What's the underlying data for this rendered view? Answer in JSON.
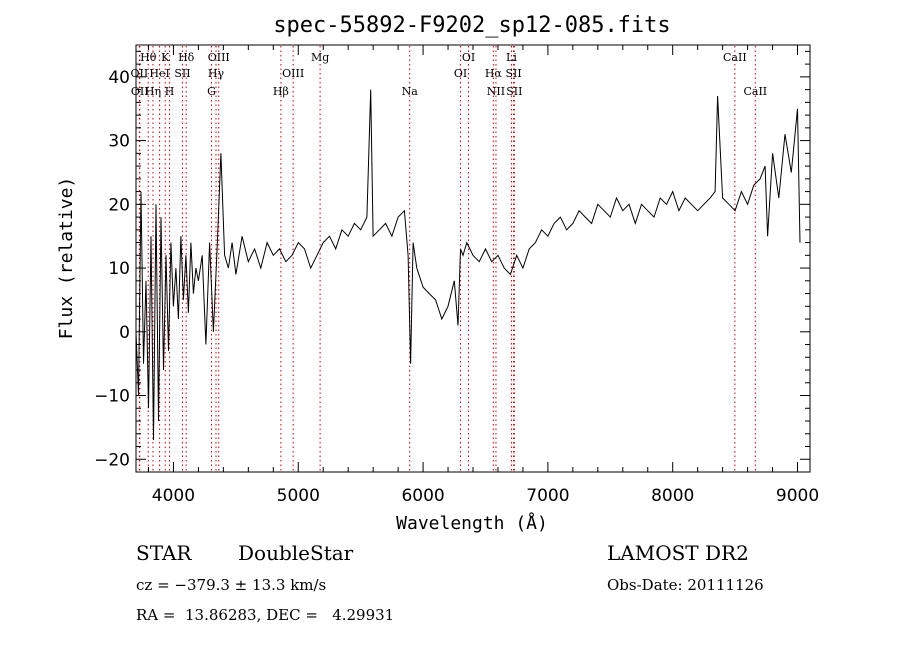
{
  "chart_data": {
    "type": "line",
    "title": "spec-55892-F9202_sp12-085.fits",
    "xlabel": "Wavelength (Å)",
    "ylabel": "Flux (relative)",
    "xlim": [
      3700,
      9100
    ],
    "ylim": [
      -22,
      45
    ],
    "x_ticks": [
      4000,
      5000,
      6000,
      7000,
      8000,
      9000
    ],
    "y_ticks": [
      -20,
      -10,
      0,
      10,
      20,
      30,
      40
    ],
    "grid": false,
    "line_color": "#000000",
    "marker_color": "#cc0000",
    "series": [
      {
        "x": [
          3700,
          3720,
          3740,
          3760,
          3780,
          3800,
          3820,
          3840,
          3860,
          3880,
          3900,
          3920,
          3940,
          3960,
          3980,
          4000,
          4020,
          4040,
          4060,
          4080,
          4100,
          4120,
          4140,
          4160,
          4180,
          4200,
          4230,
          4260,
          4290,
          4320,
          4350,
          4380,
          4410,
          4440,
          4470,
          4500,
          4550,
          4600,
          4650,
          4700,
          4750,
          4800,
          4850,
          4900,
          4950,
          5000,
          5050,
          5100,
          5150,
          5200,
          5250,
          5300,
          5350,
          5400,
          5450,
          5500,
          5550,
          5580,
          5600,
          5650,
          5700,
          5750,
          5800,
          5850,
          5880,
          5900,
          5920,
          5950,
          6000,
          6050,
          6100,
          6150,
          6200,
          6250,
          6280,
          6300,
          6320,
          6350,
          6400,
          6450,
          6500,
          6550,
          6600,
          6650,
          6700,
          6750,
          6800,
          6850,
          6900,
          6950,
          7000,
          7050,
          7100,
          7150,
          7200,
          7250,
          7300,
          7350,
          7400,
          7450,
          7500,
          7550,
          7600,
          7650,
          7700,
          7750,
          7800,
          7850,
          7900,
          7950,
          8000,
          8050,
          8100,
          8150,
          8200,
          8250,
          8300,
          8340,
          8360,
          8400,
          8450,
          8500,
          8550,
          8600,
          8650,
          8700,
          8740,
          8760,
          8800,
          8850,
          8900,
          8950,
          9000,
          9020
        ],
        "y": [
          0,
          -10,
          22,
          -5,
          8,
          -12,
          15,
          -17,
          20,
          -14,
          18,
          -6,
          12,
          -3,
          14,
          4,
          10,
          2,
          15,
          5,
          12,
          3,
          14,
          6,
          10,
          8,
          12,
          -2,
          14,
          0,
          13,
          28,
          12,
          10,
          14,
          9,
          15,
          11,
          13,
          10,
          14,
          12,
          13,
          11,
          12,
          14,
          13,
          10,
          12,
          14,
          15,
          13,
          16,
          15,
          17,
          16,
          18,
          38,
          15,
          16,
          17,
          15,
          18,
          19,
          12,
          -5,
          14,
          10,
          7,
          6,
          5,
          2,
          4,
          8,
          1,
          13,
          12,
          14,
          12,
          11,
          13,
          11,
          12,
          10,
          9,
          12,
          10,
          13,
          14,
          16,
          15,
          17,
          18,
          16,
          17,
          19,
          18,
          17,
          20,
          19,
          18,
          21,
          19,
          20,
          17,
          20,
          19,
          18,
          21,
          20,
          22,
          19,
          21,
          20,
          19,
          20,
          21,
          22,
          37,
          21,
          20,
          19,
          22,
          20,
          23,
          24,
          26,
          15,
          28,
          21,
          31,
          25,
          35,
          14
        ]
      }
    ],
    "line_markers": [
      {
        "label": "Hθ",
        "wavelength": 3798,
        "row": 1
      },
      {
        "label": "OII",
        "wavelength": 3727,
        "row": 2
      },
      {
        "label": "OII",
        "wavelength": 3730,
        "row": 3
      },
      {
        "label": "HeI",
        "wavelength": 3889,
        "row": 2
      },
      {
        "label": "Hη",
        "wavelength": 3836,
        "row": 3
      },
      {
        "label": "K",
        "wavelength": 3934,
        "row": 1
      },
      {
        "label": "SII",
        "wavelength": 4072,
        "row": 2
      },
      {
        "label": "H",
        "wavelength": 3969,
        "row": 3
      },
      {
        "label": "Hδ",
        "wavelength": 4102,
        "row": 1
      },
      {
        "label": "OIII",
        "wavelength": 4363,
        "row": 1
      },
      {
        "label": "Hγ",
        "wavelength": 4341,
        "row": 2
      },
      {
        "label": "G",
        "wavelength": 4305,
        "row": 3
      },
      {
        "label": "Hβ",
        "wavelength": 4861,
        "row": 3
      },
      {
        "label": "OIII",
        "wavelength": 4959,
        "row": 2
      },
      {
        "label": "Mg",
        "wavelength": 5175,
        "row": 1
      },
      {
        "label": "Na",
        "wavelength": 5893,
        "row": 3
      },
      {
        "label": "OI",
        "wavelength": 6364,
        "row": 1
      },
      {
        "label": "OI",
        "wavelength": 6300,
        "row": 2
      },
      {
        "label": "Li",
        "wavelength": 6708,
        "row": 1
      },
      {
        "label": "Hα",
        "wavelength": 6563,
        "row": 2
      },
      {
        "label": "SII",
        "wavelength": 6725,
        "row": 2
      },
      {
        "label": "NII",
        "wavelength": 6584,
        "row": 3
      },
      {
        "label": "SII",
        "wavelength": 6731,
        "row": 3
      },
      {
        "label": "CaII",
        "wavelength": 8498,
        "row": 1
      },
      {
        "label": "CaII",
        "wavelength": 8662,
        "row": 3
      }
    ]
  },
  "info": {
    "class_label": "STAR",
    "subclass_label": "DoubleStar",
    "survey": "LAMOST DR2",
    "cz_text": "cz = −379.3 ± 13.3 km/s",
    "obs_date_text": "Obs-Date: 20111126",
    "radec_text": "RA =  13.86283, DEC =   4.29931"
  }
}
